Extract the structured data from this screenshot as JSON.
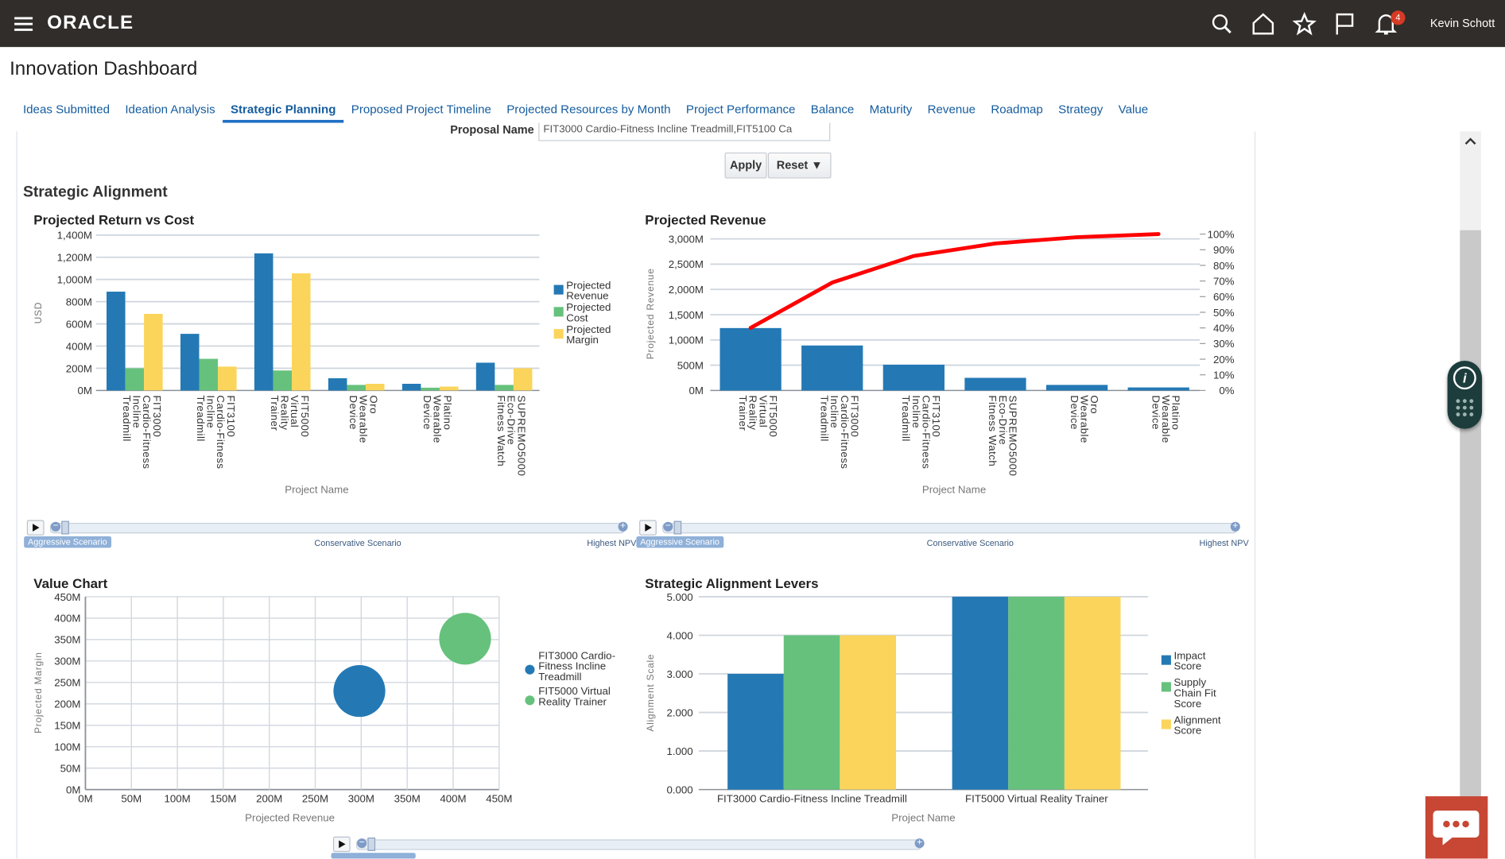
{
  "header": {
    "brand": "ORACLE",
    "user": "Kevin Schott",
    "notification_count": "4",
    "icons": [
      "menu-icon",
      "search-icon",
      "home-icon",
      "star-icon",
      "flag-icon",
      "bell-icon"
    ]
  },
  "page": {
    "title": "Innovation Dashboard"
  },
  "tabs": [
    {
      "label": "Ideas Submitted"
    },
    {
      "label": "Ideation Analysis"
    },
    {
      "label": "Strategic Planning",
      "active": true
    },
    {
      "label": "Proposed Project Timeline"
    },
    {
      "label": "Projected Resources by Month"
    },
    {
      "label": "Project Performance"
    },
    {
      "label": "Balance"
    },
    {
      "label": "Maturity"
    },
    {
      "label": "Revenue"
    },
    {
      "label": "Roadmap"
    },
    {
      "label": "Strategy"
    },
    {
      "label": "Value"
    }
  ],
  "filter": {
    "label": "Proposal Name",
    "value": "FIT3000 Cardio-Fitness Incline Treadmill,FIT5100 Ca",
    "apply": "Apply",
    "reset": "Reset ▼"
  },
  "section_title": "Strategic Alignment",
  "sliders": {
    "stops": [
      "Aggressive Scenario",
      "Conservative Scenario",
      "Highest NPV"
    ],
    "selected": "Aggressive Scenario"
  },
  "colors": {
    "blue": "#2479b5",
    "green": "#66c17c",
    "yellow": "#fbd55b",
    "red": "#ff0000",
    "header": "#312d2a"
  },
  "chart_data": [
    {
      "type": "bar",
      "title": "Projected Return vs Cost",
      "xlabel": "Project Name",
      "ylabel": "USD",
      "ylim": [
        0,
        1400
      ],
      "yticks": [
        "0M",
        "200M",
        "400M",
        "600M",
        "800M",
        "1,000M",
        "1,200M",
        "1,400M"
      ],
      "grid": true,
      "legend": "right",
      "categories": [
        "FIT3000\nCardio-Fitness\nIncline\nTreadmill",
        "FIT3100\nCardio-Fitness\nIncline\nTreadmill",
        "FIT5000\nVirtual\nReality\nTrainer",
        "Oro\nWearable\nDevice",
        "Platino\nWearable\nDevice",
        "SUPREMO5000\nEco-Drive\nFitness Watch"
      ],
      "series": [
        {
          "name": "Projected Revenue",
          "color": "#2479b5",
          "values": [
            890,
            510,
            1235,
            110,
            60,
            250
          ]
        },
        {
          "name": "Projected Cost",
          "color": "#66c17c",
          "values": [
            200,
            285,
            180,
            50,
            25,
            50
          ]
        },
        {
          "name": "Projected Margin",
          "color": "#fbd55b",
          "values": [
            690,
            215,
            1055,
            60,
            35,
            200
          ]
        }
      ]
    },
    {
      "type": "bar",
      "title": "Projected Revenue",
      "xlabel": "Project Name",
      "ylabel": "Projected Revenue",
      "ylim": [
        0,
        3000
      ],
      "yticks": [
        "0M",
        "500M",
        "1,000M",
        "1,500M",
        "2,000M",
        "2,500M",
        "3,000M"
      ],
      "y2lim": [
        0,
        100
      ],
      "y2ticks": [
        "0%",
        "10%",
        "20%",
        "30%",
        "40%",
        "50%",
        "60%",
        "70%",
        "80%",
        "90%",
        "100%"
      ],
      "grid": true,
      "categories": [
        "FIT5000\nVirtual\nReality\nTrainer",
        "FIT3000\nCardio-Fitness\nIncline\nTreadmill",
        "FIT3100\nCardio-Fitness\nIncline\nTreadmill",
        "SUPREMO5000\nEco-Drive\nFitness Watch",
        "Oro\nWearable\nDevice",
        "Platino\nWearable\nDevice"
      ],
      "values": [
        1235,
        890,
        510,
        250,
        110,
        60
      ],
      "color": "#2479b5",
      "cumulative_percent": [
        40,
        69,
        86,
        94,
        98,
        100
      ],
      "line_color": "#ff0000"
    },
    {
      "type": "scatter",
      "title": "Value Chart",
      "xlabel": "Projected Revenue",
      "ylabel": "Projected Margin",
      "xlim": [
        0,
        450
      ],
      "ylim": [
        0,
        450
      ],
      "xticks": [
        "0M",
        "50M",
        "100M",
        "150M",
        "200M",
        "250M",
        "300M",
        "350M",
        "400M",
        "450M"
      ],
      "yticks": [
        "0M",
        "50M",
        "100M",
        "150M",
        "200M",
        "250M",
        "300M",
        "350M",
        "400M",
        "450M"
      ],
      "grid": true,
      "legend": "right",
      "points": [
        {
          "name": "FIT3000 Cardio-Fitness Incline Treadmill",
          "x": 298,
          "y": 230,
          "color": "#2479b5"
        },
        {
          "name": "FIT5000 Virtual Reality Trainer",
          "x": 413,
          "y": 352,
          "color": "#66c17c"
        }
      ]
    },
    {
      "type": "bar",
      "title": "Strategic Alignment Levers",
      "xlabel": "Project Name",
      "ylabel": "Alignment Scale",
      "ylim": [
        0,
        5
      ],
      "yticks": [
        "0.000",
        "1.000",
        "2.000",
        "3.000",
        "4.000",
        "5.000"
      ],
      "grid": true,
      "legend": "right",
      "categories": [
        "FIT3000 Cardio-Fitness Incline Treadmill",
        "FIT5000 Virtual Reality Trainer"
      ],
      "series": [
        {
          "name": "Impact Score",
          "color": "#2479b5",
          "values": [
            3,
            5
          ]
        },
        {
          "name": "Supply Chain Fit Score",
          "color": "#66c17c",
          "values": [
            4,
            5
          ]
        },
        {
          "name": "Alignment Score",
          "color": "#fbd55b",
          "values": [
            4,
            5
          ]
        }
      ]
    }
  ]
}
